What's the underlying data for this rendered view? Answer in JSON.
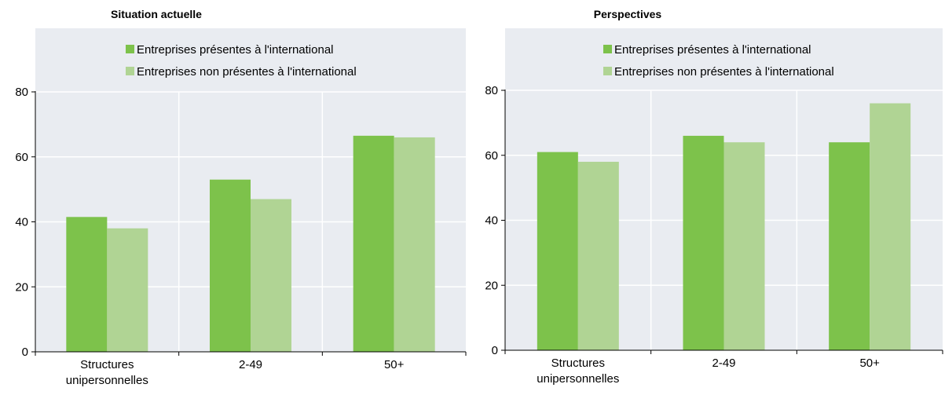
{
  "colors": {
    "series_international": "#7dc24b",
    "series_non_international": "#b0d494",
    "plot_bg": "#e9ecf1",
    "grid": "#ffffff",
    "axis": "#000000"
  },
  "chart_data": [
    {
      "type": "bar",
      "title": "Situation actuelle",
      "categories": [
        [
          "Structures",
          "unipersonnelles"
        ],
        [
          "2-49"
        ],
        [
          "50+"
        ]
      ],
      "series": [
        {
          "name": "Entreprises présentes à l'international",
          "values": [
            41.5,
            53,
            66.5
          ]
        },
        {
          "name": "Entreprises non présentes à l'international",
          "values": [
            38,
            47,
            66
          ]
        }
      ],
      "ylim": [
        0,
        80
      ],
      "yticks": [
        0,
        20,
        40,
        60,
        80
      ],
      "grid": true,
      "legend_position": "top"
    },
    {
      "type": "bar",
      "title": "Perspectives",
      "categories": [
        [
          "Structures",
          "unipersonnelles"
        ],
        [
          "2-49"
        ],
        [
          "50+"
        ]
      ],
      "series": [
        {
          "name": "Entreprises présentes à l'international",
          "values": [
            61,
            66,
            64
          ]
        },
        {
          "name": "Entreprises non présentes à l'international",
          "values": [
            58,
            64,
            76
          ]
        }
      ],
      "ylim": [
        0,
        80
      ],
      "yticks": [
        0,
        20,
        40,
        60,
        80
      ],
      "grid": true,
      "legend_position": "top"
    }
  ]
}
